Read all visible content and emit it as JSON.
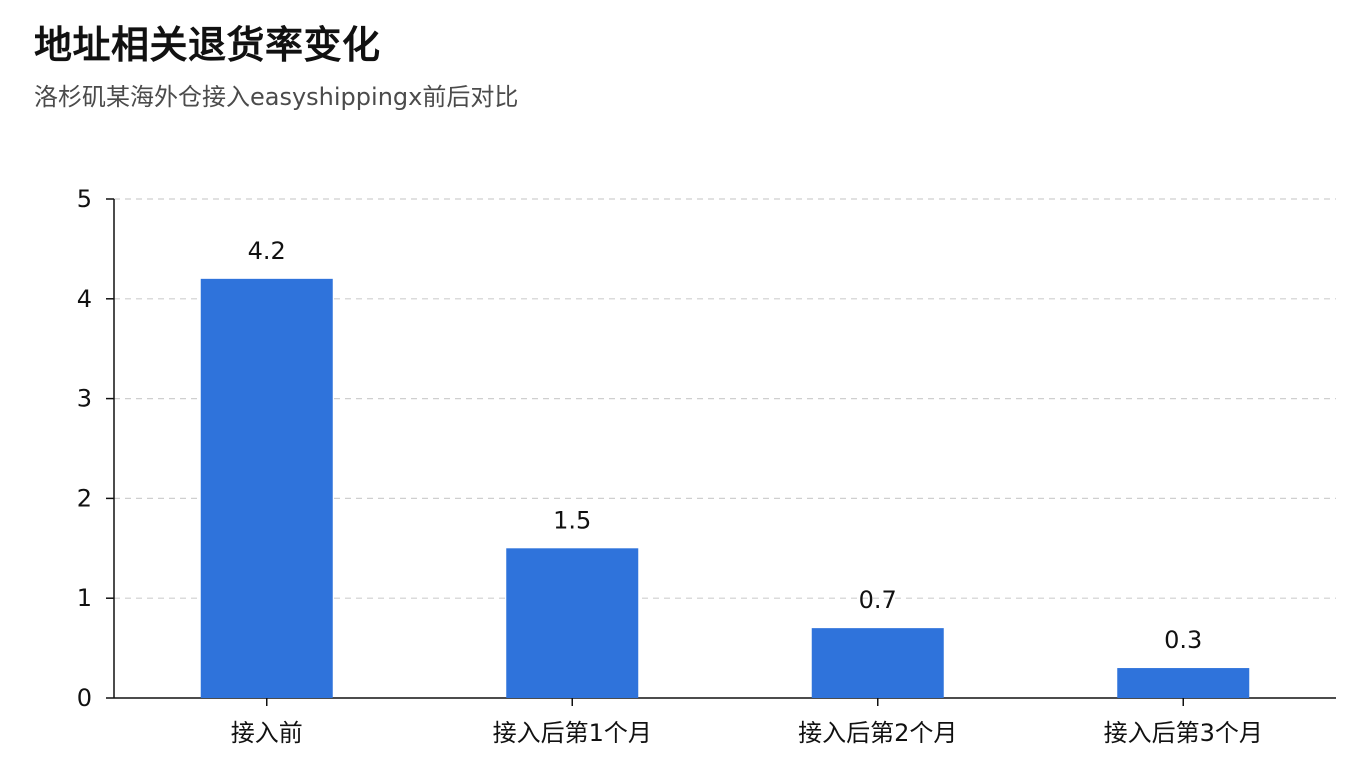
{
  "header": {
    "title": "地址相关退货率变化",
    "subtitle": "洛杉矶某海外仓接入easyshippingx前后对比"
  },
  "colors": {
    "bar": "#2f73db",
    "grid": "#cfcfcf",
    "axis": "#111111"
  },
  "chart_data": {
    "type": "bar",
    "title": "地址相关退货率变化",
    "subtitle": "洛杉矶某海外仓接入easyshippingx前后对比",
    "categories": [
      "接入前",
      "接入后第1个月",
      "接入后第2个月",
      "接入后第3个月"
    ],
    "values": [
      4.2,
      1.5,
      0.7,
      0.3
    ],
    "value_labels": [
      "4.2",
      "1.5",
      "0.7",
      "0.3"
    ],
    "xlabel": "",
    "ylabel": "",
    "ylim": [
      0,
      5
    ],
    "yticks": [
      0,
      1,
      2,
      3,
      4,
      5
    ],
    "ytick_labels": [
      "0",
      "1",
      "2",
      "3",
      "4",
      "5"
    ],
    "grid": true,
    "legend": false
  }
}
